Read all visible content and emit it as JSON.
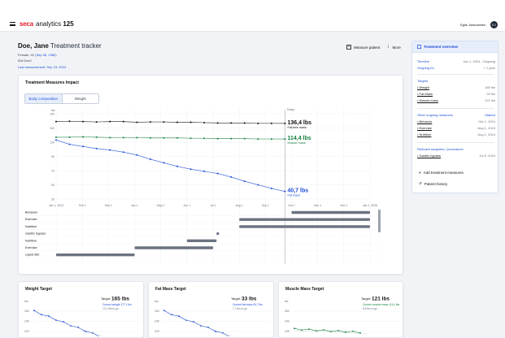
{
  "header": {
    "brand": "seca",
    "product": "analytics",
    "product_num": "125",
    "user_name": "Egils Jonkuvietes",
    "user_initials": "EJ"
  },
  "patient": {
    "last_name": "Doe,",
    "first_name": "Jane",
    "page_title": "Treatment tracker",
    "info_prefix": "Female, 42",
    "birth": "(Sep 26, 1982)",
    "id": "ID# DoeJ",
    "last_measurement_label": "Last measurement:",
    "last_measurement_date": "Sep 23, 2024"
  },
  "actions": {
    "measure": "Measure patient",
    "more": "More"
  },
  "impact": {
    "title": "Treatment Measures Impact",
    "tabs": [
      "Body composition",
      "Weight"
    ],
    "y_unit": "lbs",
    "today_label": "Today",
    "x_ticks": [
      "Jan 1, 2024",
      "Feb 1",
      "Mar 1",
      "Apr 1",
      "May 1",
      "Jun 1",
      "Jul 1",
      "Aug 1",
      "Sep 1",
      "Oct 1",
      "Nov 1",
      "Dec 1",
      "Jan 1, 2025"
    ],
    "y_ticks": [
      "150",
      "130",
      "110",
      "90",
      "70",
      "50",
      "30"
    ],
    "gantt_labels": [
      "Behavior",
      "Exercise",
      "Nutrition",
      "Gastric bypass",
      "Nutrition",
      "Exercise",
      "Liquid diet"
    ],
    "series": [
      {
        "name": "Fat-free mass",
        "value": "136,4 lbs",
        "color": "#111111"
      },
      {
        "name": "Muscle mass",
        "value": "114,4 lbs",
        "color": "#15803d"
      },
      {
        "name": "Fat mass",
        "value": "40,7 lbs",
        "color": "#1d4ed8"
      }
    ]
  },
  "chart_data": [
    {
      "type": "line",
      "x": [
        "Jan 1",
        "Jan 15",
        "Feb 1",
        "Feb 15",
        "Mar 1",
        "Mar 15",
        "Apr 1",
        "Apr 15",
        "May 1",
        "May 15",
        "Jun 1",
        "Jun 15",
        "Jul 1",
        "Jul 15",
        "Aug 1",
        "Aug 15",
        "Sep 1",
        "Sep 23"
      ],
      "series": [
        {
          "name": "Fat-free mass",
          "values": [
            139,
            139.5,
            139,
            138.5,
            139,
            139,
            138,
            138.5,
            138.5,
            138,
            138,
            137.5,
            137,
            137,
            137,
            136.5,
            136.5,
            136.4
          ]
        },
        {
          "name": "Muscle mass",
          "values": [
            117,
            117,
            117.5,
            117,
            116.5,
            116.5,
            116.5,
            116,
            116,
            116,
            115.5,
            115.5,
            115,
            115,
            115,
            114.5,
            114.5,
            114.4
          ]
        },
        {
          "name": "Fat mass",
          "values": [
            113,
            107,
            104,
            101,
            99,
            96,
            92,
            86,
            81,
            76,
            72,
            69,
            66,
            61,
            55,
            50,
            45,
            40.7
          ]
        }
      ],
      "ylim": [
        30,
        150
      ],
      "ylabel": "lbs"
    },
    {
      "type": "bar",
      "categories": [
        "Behavior",
        "Exercise",
        "Nutrition",
        "Gastric bypass",
        "Nutrition",
        "Exercise",
        "Liquid diet"
      ],
      "start": [
        "Oct 1",
        "Aug 1",
        "Aug 1",
        "Jul 5",
        "Jun 1",
        "Apr 1",
        "Jan 1"
      ],
      "end": [
        "Jan 1, 2025",
        "Jan 1, 2025",
        "Jan 1, 2025",
        "Jul 6",
        "Jul 5",
        "Jul 1",
        "Mar 31"
      ]
    }
  ],
  "targets": [
    {
      "title": "Weight Target",
      "target_label": "Target:",
      "target_value": "165 lbs",
      "current": "Current weight 177,1 lbs",
      "remaining": "12,1 lbs to go"
    },
    {
      "title": "Fat Mass Target",
      "target_label": "Target:",
      "target_value": "33 lbs",
      "current": "Current fat mass 40,7 lbs",
      "remaining": "7,7 lbs to go"
    },
    {
      "title": "Muscle Mass Target",
      "target_label": "Target:",
      "target_value": "121 lbs",
      "current": "Current muscle mass 114,4 lbs",
      "remaining": "6,6 lbs to go"
    }
  ],
  "mini_axis": [
    "lbs",
    "260",
    "240",
    "220"
  ],
  "sidebar": {
    "title": "Treatment overview",
    "timeline_label": "Timeline",
    "timeline_value": "Jan 1, 2024 - Ongoing",
    "ongoing_label": "Ongoing for",
    "ongoing_value": "< 1 year",
    "targets_label": "Targets",
    "targets": [
      {
        "name": "Weight",
        "value": "165 lbs"
      },
      {
        "name": "Fat Mass",
        "value": "33 lbs"
      },
      {
        "name": "Muscle mass",
        "value": "121 lbs"
      }
    ],
    "ongoing_measures_label": "Other ongoing measures",
    "started_label": "Started",
    "measures": [
      {
        "name": "Behavior",
        "value": "Oct 1, 2024"
      },
      {
        "name": "Exercise",
        "value": "Aug 1, 2024"
      },
      {
        "name": "Nutrition",
        "value": "Aug 1, 2024"
      }
    ],
    "relevant_label": "Relevant surgeries / procedures",
    "procedures": [
      {
        "name": "Gastric bypass",
        "value": "Jul 5, 2024"
      }
    ],
    "add_label": "Add treatment measures",
    "history_label": "Patient history"
  }
}
